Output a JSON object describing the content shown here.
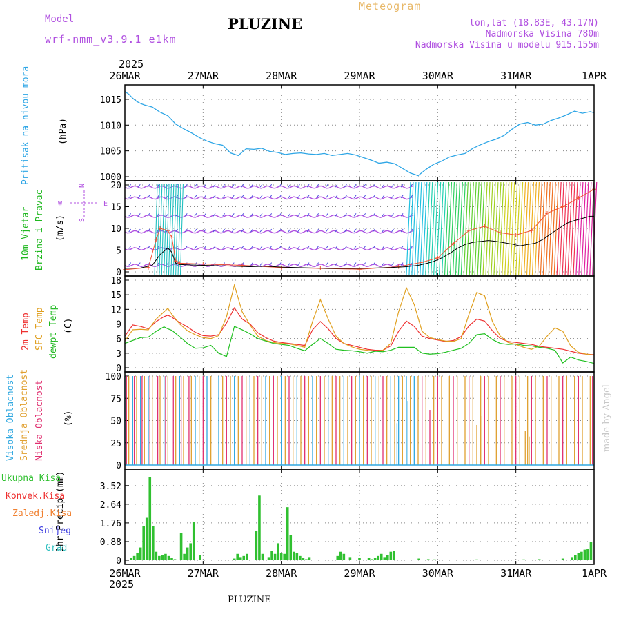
{
  "header": {
    "model_label": "Model",
    "model_name": "wrf-nmm_v3.9.1 e1km",
    "title": "PLUZINE",
    "meteogram": "Meteogram",
    "lonlat": "lon,lat (18.83E, 43.17N)",
    "elevation": "Nadmorska Visina 780m",
    "model_elevation": "Nadmorska Visina u modelu 915.155m",
    "year_top": "2025",
    "year_bottom": "2025",
    "footer": "PLUZINE",
    "credit": "made by Angel"
  },
  "colors": {
    "pressure": "#2ea6e6",
    "temp2m": "#ee3030",
    "sfc": "#e0a020",
    "dewpt": "#20c020",
    "wind_line": "#000000",
    "gust": "#f05030",
    "precip": "#30c030",
    "cloud_high": "#30a8e0",
    "cloud_mid": "#e0a030",
    "cloud_low": "#e03070",
    "purple": "#b050e0"
  },
  "x_axis": {
    "labels": [
      "26MAR",
      "27MAR",
      "28MAR",
      "29MAR",
      "30MAR",
      "31MAR",
      "1APR"
    ]
  },
  "panels": {
    "pressure": {
      "label_1": "Pritisak na nivou mora",
      "unit": "(hPa)"
    },
    "wind": {
      "label_1": "10m Vjetar",
      "label_2": "Brzina i Pravac",
      "unit": "(m/s)",
      "compass_n": "N",
      "compass_s": "S",
      "compass_w": "W",
      "compass_e": "E"
    },
    "temp": {
      "label_1": "2m Temp",
      "label_2": "SFC Temp",
      "label_3": "dewpt Temp",
      "unit": "(C)"
    },
    "cloud": {
      "label_1": "Visoka Oblacnost",
      "label_2": "Srednja Oblacnost",
      "label_3": "Niska Oblacnost",
      "unit": "(%)"
    },
    "precip": {
      "legend": [
        "Ukupna Kisa",
        "Konvek.Kisa",
        "Zaledj.Kisa",
        "Snijeg",
        "Grad"
      ],
      "unit": "1hr Precip (mm)"
    }
  },
  "chart_data": [
    {
      "type": "line",
      "name": "pressure",
      "ylim": [
        1000,
        1017
      ],
      "yticks": [
        1000,
        1005,
        1010,
        1015
      ],
      "x_days": [
        0,
        0.05,
        0.1,
        0.15,
        0.2,
        0.25,
        0.3,
        0.35,
        0.45,
        0.55,
        0.65,
        0.75,
        0.85,
        0.95,
        1.05,
        1.15,
        1.25,
        1.35,
        1.45,
        1.55,
        1.65,
        1.75,
        1.85,
        1.95,
        2.05,
        2.15,
        2.25,
        2.35,
        2.45,
        2.55,
        2.65,
        2.75,
        2.85,
        2.95,
        3.05,
        3.15,
        3.25,
        3.35,
        3.45,
        3.55,
        3.65,
        3.75,
        3.85,
        3.95,
        4.05,
        4.15,
        4.25,
        4.35,
        4.45,
        4.55,
        4.65,
        4.75,
        4.85,
        4.95,
        5.05,
        5.15,
        5.25,
        5.35,
        5.45,
        5.55,
        5.65,
        5.75,
        5.85,
        5.95,
        6.0
      ],
      "values": [
        1016.5,
        1016.0,
        1015.2,
        1014.6,
        1014.2,
        1013.9,
        1013.7,
        1013.5,
        1012.5,
        1011.8,
        1010.2,
        1009.3,
        1008.5,
        1007.6,
        1006.9,
        1006.4,
        1006.1,
        1004.6,
        1004.1,
        1005.4,
        1005.3,
        1005.5,
        1004.9,
        1004.7,
        1004.3,
        1004.5,
        1004.6,
        1004.4,
        1004.3,
        1004.5,
        1004.1,
        1004.3,
        1004.5,
        1004.2,
        1003.7,
        1003.2,
        1002.6,
        1002.8,
        1002.5,
        1001.6,
        1000.7,
        1000.2,
        1001.4,
        1002.4,
        1003.0,
        1003.8,
        1004.2,
        1004.5,
        1005.5,
        1006.2,
        1006.8,
        1007.3,
        1008.0,
        1009.2,
        1010.2,
        1010.5,
        1010.0,
        1010.2,
        1010.9,
        1011.4,
        1012.0,
        1012.7,
        1012.3,
        1012.6,
        1012.4
      ]
    },
    {
      "type": "line",
      "name": "wind",
      "ylim": [
        0,
        20
      ],
      "yticks": [
        0,
        5,
        10,
        15,
        20
      ],
      "x_days": [
        0,
        0.2,
        0.35,
        0.45,
        0.55,
        0.6,
        0.65,
        0.7,
        0.8,
        1.0,
        1.2,
        1.4,
        1.6,
        1.8,
        2.0,
        2.2,
        2.4,
        2.6,
        2.8,
        3.0,
        3.2,
        3.4,
        3.6,
        3.75,
        3.85,
        3.95,
        4.05,
        4.15,
        4.25,
        4.35,
        4.45,
        4.55,
        4.65,
        4.75,
        4.85,
        4.95,
        5.05,
        5.15,
        5.25,
        5.35,
        5.45,
        5.55,
        5.65,
        5.75,
        5.85,
        5.95,
        6.0
      ],
      "values": [
        0.8,
        0.9,
        1.5,
        4.0,
        5.5,
        4.5,
        2.0,
        1.7,
        1.6,
        1.5,
        1.4,
        1.3,
        1.2,
        1.3,
        1.1,
        1.0,
        0.9,
        0.8,
        0.8,
        0.8,
        0.9,
        1.0,
        1.2,
        1.5,
        1.9,
        2.4,
        3.2,
        4.2,
        5.4,
        6.3,
        6.8,
        7.0,
        7.2,
        7.0,
        6.7,
        6.4,
        6.0,
        6.3,
        6.6,
        7.5,
        8.8,
        10.0,
        11.2,
        11.8,
        12.3,
        12.8,
        12.8
      ],
      "gust_x_days": [
        0,
        0.3,
        0.4,
        0.45,
        0.55,
        0.6,
        0.65,
        0.7,
        1.0,
        1.5,
        2.0,
        2.5,
        3.0,
        3.5,
        3.8,
        4.0,
        4.2,
        4.4,
        4.6,
        4.8,
        5.0,
        5.2,
        5.4,
        5.6,
        5.8,
        6.0
      ],
      "gust_values": [
        0.5,
        1.0,
        7.5,
        10.0,
        9.5,
        8.0,
        2.5,
        2.0,
        1.8,
        1.5,
        1.0,
        0.8,
        0.6,
        1.2,
        2.2,
        3.2,
        6.5,
        9.5,
        10.5,
        9.0,
        8.5,
        9.5,
        13.5,
        15.0,
        17.0,
        19.0
      ]
    },
    {
      "type": "line",
      "name": "temperature",
      "ylim": [
        0,
        18
      ],
      "yticks": [
        0,
        3,
        6,
        9,
        12,
        15,
        18
      ],
      "x_days": [
        0,
        0.1,
        0.2,
        0.3,
        0.4,
        0.5,
        0.55,
        0.6,
        0.7,
        0.8,
        0.9,
        1.0,
        1.1,
        1.2,
        1.3,
        1.4,
        1.5,
        1.6,
        1.7,
        1.8,
        1.9,
        2.0,
        2.1,
        2.2,
        2.3,
        2.4,
        2.5,
        2.6,
        2.7,
        2.8,
        2.9,
        3.0,
        3.1,
        3.2,
        3.3,
        3.4,
        3.5,
        3.6,
        3.7,
        3.8,
        3.9,
        4.0,
        4.1,
        4.2,
        4.3,
        4.4,
        4.5,
        4.6,
        4.7,
        4.8,
        4.9,
        5.0,
        5.1,
        5.2,
        5.3,
        5.4,
        5.5,
        5.6,
        5.7,
        5.8,
        5.9,
        6.0
      ],
      "series": [
        {
          "name": "2m Temp",
          "values": [
            6.5,
            8.8,
            8.5,
            8.0,
            9.5,
            10.5,
            10.8,
            10.4,
            9.3,
            8.4,
            7.3,
            6.6,
            6.5,
            6.8,
            9.2,
            12.3,
            10.0,
            9.0,
            7.2,
            6.2,
            5.5,
            5.2,
            5.0,
            4.8,
            4.6,
            7.8,
            9.5,
            8.0,
            6.0,
            5.0,
            4.6,
            4.2,
            3.8,
            3.6,
            3.6,
            4.5,
            7.5,
            9.6,
            8.5,
            6.5,
            6.0,
            5.7,
            5.4,
            5.6,
            6.4,
            8.6,
            10.0,
            9.6,
            7.6,
            6.0,
            5.4,
            5.2,
            5.0,
            4.8,
            4.4,
            4.2,
            4.0,
            3.8,
            3.4,
            3.0,
            2.8,
            2.7
          ]
        },
        {
          "name": "SFC Temp",
          "values": [
            5.5,
            7.8,
            7.9,
            7.8,
            10.0,
            11.5,
            12.2,
            11.0,
            9.0,
            7.6,
            6.8,
            6.2,
            6.0,
            6.6,
            10.5,
            17.0,
            11.5,
            8.8,
            6.5,
            5.6,
            5.2,
            5.0,
            4.9,
            4.6,
            4.2,
            9.5,
            14.0,
            10.0,
            6.5,
            5.0,
            4.3,
            3.8,
            3.6,
            3.4,
            3.6,
            5.0,
            11.5,
            16.4,
            13.0,
            7.5,
            6.2,
            5.8,
            5.5,
            5.4,
            6.0,
            11.0,
            15.5,
            14.8,
            9.5,
            6.5,
            5.2,
            4.8,
            4.2,
            3.8,
            4.5,
            6.5,
            8.2,
            7.5,
            4.5,
            3.2,
            2.8,
            2.6
          ]
        },
        {
          "name": "dewpt Temp",
          "values": [
            5.0,
            5.6,
            6.2,
            6.3,
            7.5,
            8.4,
            8.0,
            7.7,
            6.4,
            5.0,
            4.0,
            4.1,
            4.6,
            3.0,
            2.3,
            8.5,
            7.8,
            7.0,
            6.0,
            5.5,
            5.0,
            4.8,
            4.6,
            4.0,
            3.5,
            4.8,
            6.0,
            5.0,
            3.8,
            3.6,
            3.5,
            3.3,
            3.0,
            3.4,
            3.3,
            3.6,
            4.2,
            4.2,
            4.2,
            3.0,
            2.8,
            2.9,
            3.2,
            3.6,
            4.0,
            5.0,
            6.8,
            7.0,
            5.8,
            5.0,
            4.8,
            4.9,
            4.6,
            4.5,
            4.2,
            4.0,
            3.6,
            1.0,
            2.2,
            1.6,
            1.3,
            0.9
          ]
        }
      ]
    },
    {
      "type": "bar",
      "name": "cloud cover",
      "ylim": [
        0,
        100
      ],
      "yticks": [
        0,
        25,
        50,
        75,
        100
      ],
      "note": "vertical lines, mostly 0 or 100 percent",
      "high_days_on": [
        0.0,
        0.1,
        0.2,
        0.3,
        0.5,
        0.7,
        0.9,
        1.05,
        1.2,
        1.4,
        1.6,
        1.8,
        2.0,
        2.2,
        2.4,
        2.6,
        2.8,
        3.0,
        3.2,
        3.4,
        3.5,
        3.6,
        3.7
      ],
      "mid_days_on": [
        0.05,
        0.15,
        0.25,
        0.35,
        0.45,
        0.55,
        0.65,
        0.75,
        0.85,
        0.95,
        1.1,
        1.25,
        1.35,
        1.45,
        1.55,
        1.65,
        1.75,
        1.85,
        1.95,
        2.05,
        2.15,
        2.25,
        2.35,
        2.45,
        2.55,
        2.65,
        2.75,
        2.85,
        2.95,
        3.05,
        3.15,
        3.25,
        3.35,
        3.45,
        3.55,
        3.65,
        3.75,
        3.85,
        3.95,
        4.05,
        4.15,
        4.25,
        4.35,
        4.45,
        4.55,
        4.65,
        4.75,
        4.85,
        4.95,
        5.05,
        5.15,
        5.25,
        5.35,
        5.45,
        5.55,
        5.65,
        5.75,
        5.85,
        5.95
      ],
      "low_days_on": [
        0.02,
        0.12,
        0.22,
        0.32,
        0.42,
        0.52,
        0.62,
        0.72,
        0.82,
        1.0,
        1.3,
        1.5,
        1.7,
        1.9,
        2.1,
        2.3,
        2.5,
        2.7,
        2.9,
        3.1,
        3.3,
        3.8,
        4.0,
        4.2,
        4.4,
        4.6,
        4.8,
        5.0,
        5.2,
        5.4,
        5.6,
        5.8,
        5.98
      ],
      "partial": [
        {
          "day": 3.48,
          "layer": "high",
          "value": 47
        },
        {
          "day": 3.62,
          "layer": "high",
          "value": 72
        },
        {
          "day": 4.5,
          "layer": "mid",
          "value": 45
        },
        {
          "day": 4.55,
          "layer": "mid",
          "value": 55
        },
        {
          "day": 5.12,
          "layer": "mid",
          "value": 38
        },
        {
          "day": 5.17,
          "layer": "mid",
          "value": 32
        },
        {
          "day": 3.9,
          "layer": "low",
          "value": 62
        }
      ]
    },
    {
      "type": "bar",
      "name": "1hr precip",
      "ylim": [
        0,
        4.1
      ],
      "yticks": [
        0,
        0.88,
        1.76,
        2.64,
        3.52
      ],
      "x_days": [
        0.08,
        0.12,
        0.16,
        0.2,
        0.24,
        0.28,
        0.32,
        0.36,
        0.4,
        0.44,
        0.48,
        0.52,
        0.56,
        0.6,
        0.64,
        0.72,
        0.76,
        0.8,
        0.84,
        0.88,
        0.96,
        1.4,
        1.44,
        1.48,
        1.52,
        1.56,
        1.68,
        1.72,
        1.76,
        1.84,
        1.88,
        1.92,
        1.96,
        2.0,
        2.04,
        2.08,
        2.12,
        2.16,
        2.2,
        2.24,
        2.28,
        2.32,
        2.36,
        2.72,
        2.76,
        2.8,
        2.88,
        3.0,
        3.12,
        3.16,
        3.2,
        3.24,
        3.28,
        3.32,
        3.36,
        3.4,
        3.44,
        3.76,
        3.84,
        3.88,
        3.96,
        4.0,
        4.4,
        4.5,
        4.72,
        4.8,
        4.88,
        5.1,
        5.3,
        5.6,
        5.72,
        5.76,
        5.8,
        5.84,
        5.88,
        5.92,
        5.96
      ],
      "values": [
        0.1,
        0.2,
        0.35,
        0.6,
        1.6,
        2.0,
        3.93,
        1.6,
        0.4,
        0.2,
        0.25,
        0.3,
        0.2,
        0.1,
        0.05,
        1.3,
        0.3,
        0.6,
        0.8,
        1.8,
        0.25,
        0.08,
        0.3,
        0.15,
        0.2,
        0.3,
        1.4,
        3.05,
        0.3,
        0.15,
        0.45,
        0.3,
        0.8,
        0.35,
        0.3,
        2.5,
        1.2,
        0.4,
        0.35,
        0.2,
        0.1,
        0.05,
        0.15,
        0.2,
        0.4,
        0.3,
        0.15,
        0.1,
        0.1,
        0.05,
        0.1,
        0.2,
        0.3,
        0.15,
        0.25,
        0.4,
        0.45,
        0.08,
        0.03,
        0.05,
        0.04,
        0.03,
        0.03,
        0.04,
        0.03,
        0.03,
        0.03,
        0.04,
        0.05,
        0.08,
        0.15,
        0.25,
        0.35,
        0.4,
        0.5,
        0.55,
        0.85
      ]
    }
  ]
}
